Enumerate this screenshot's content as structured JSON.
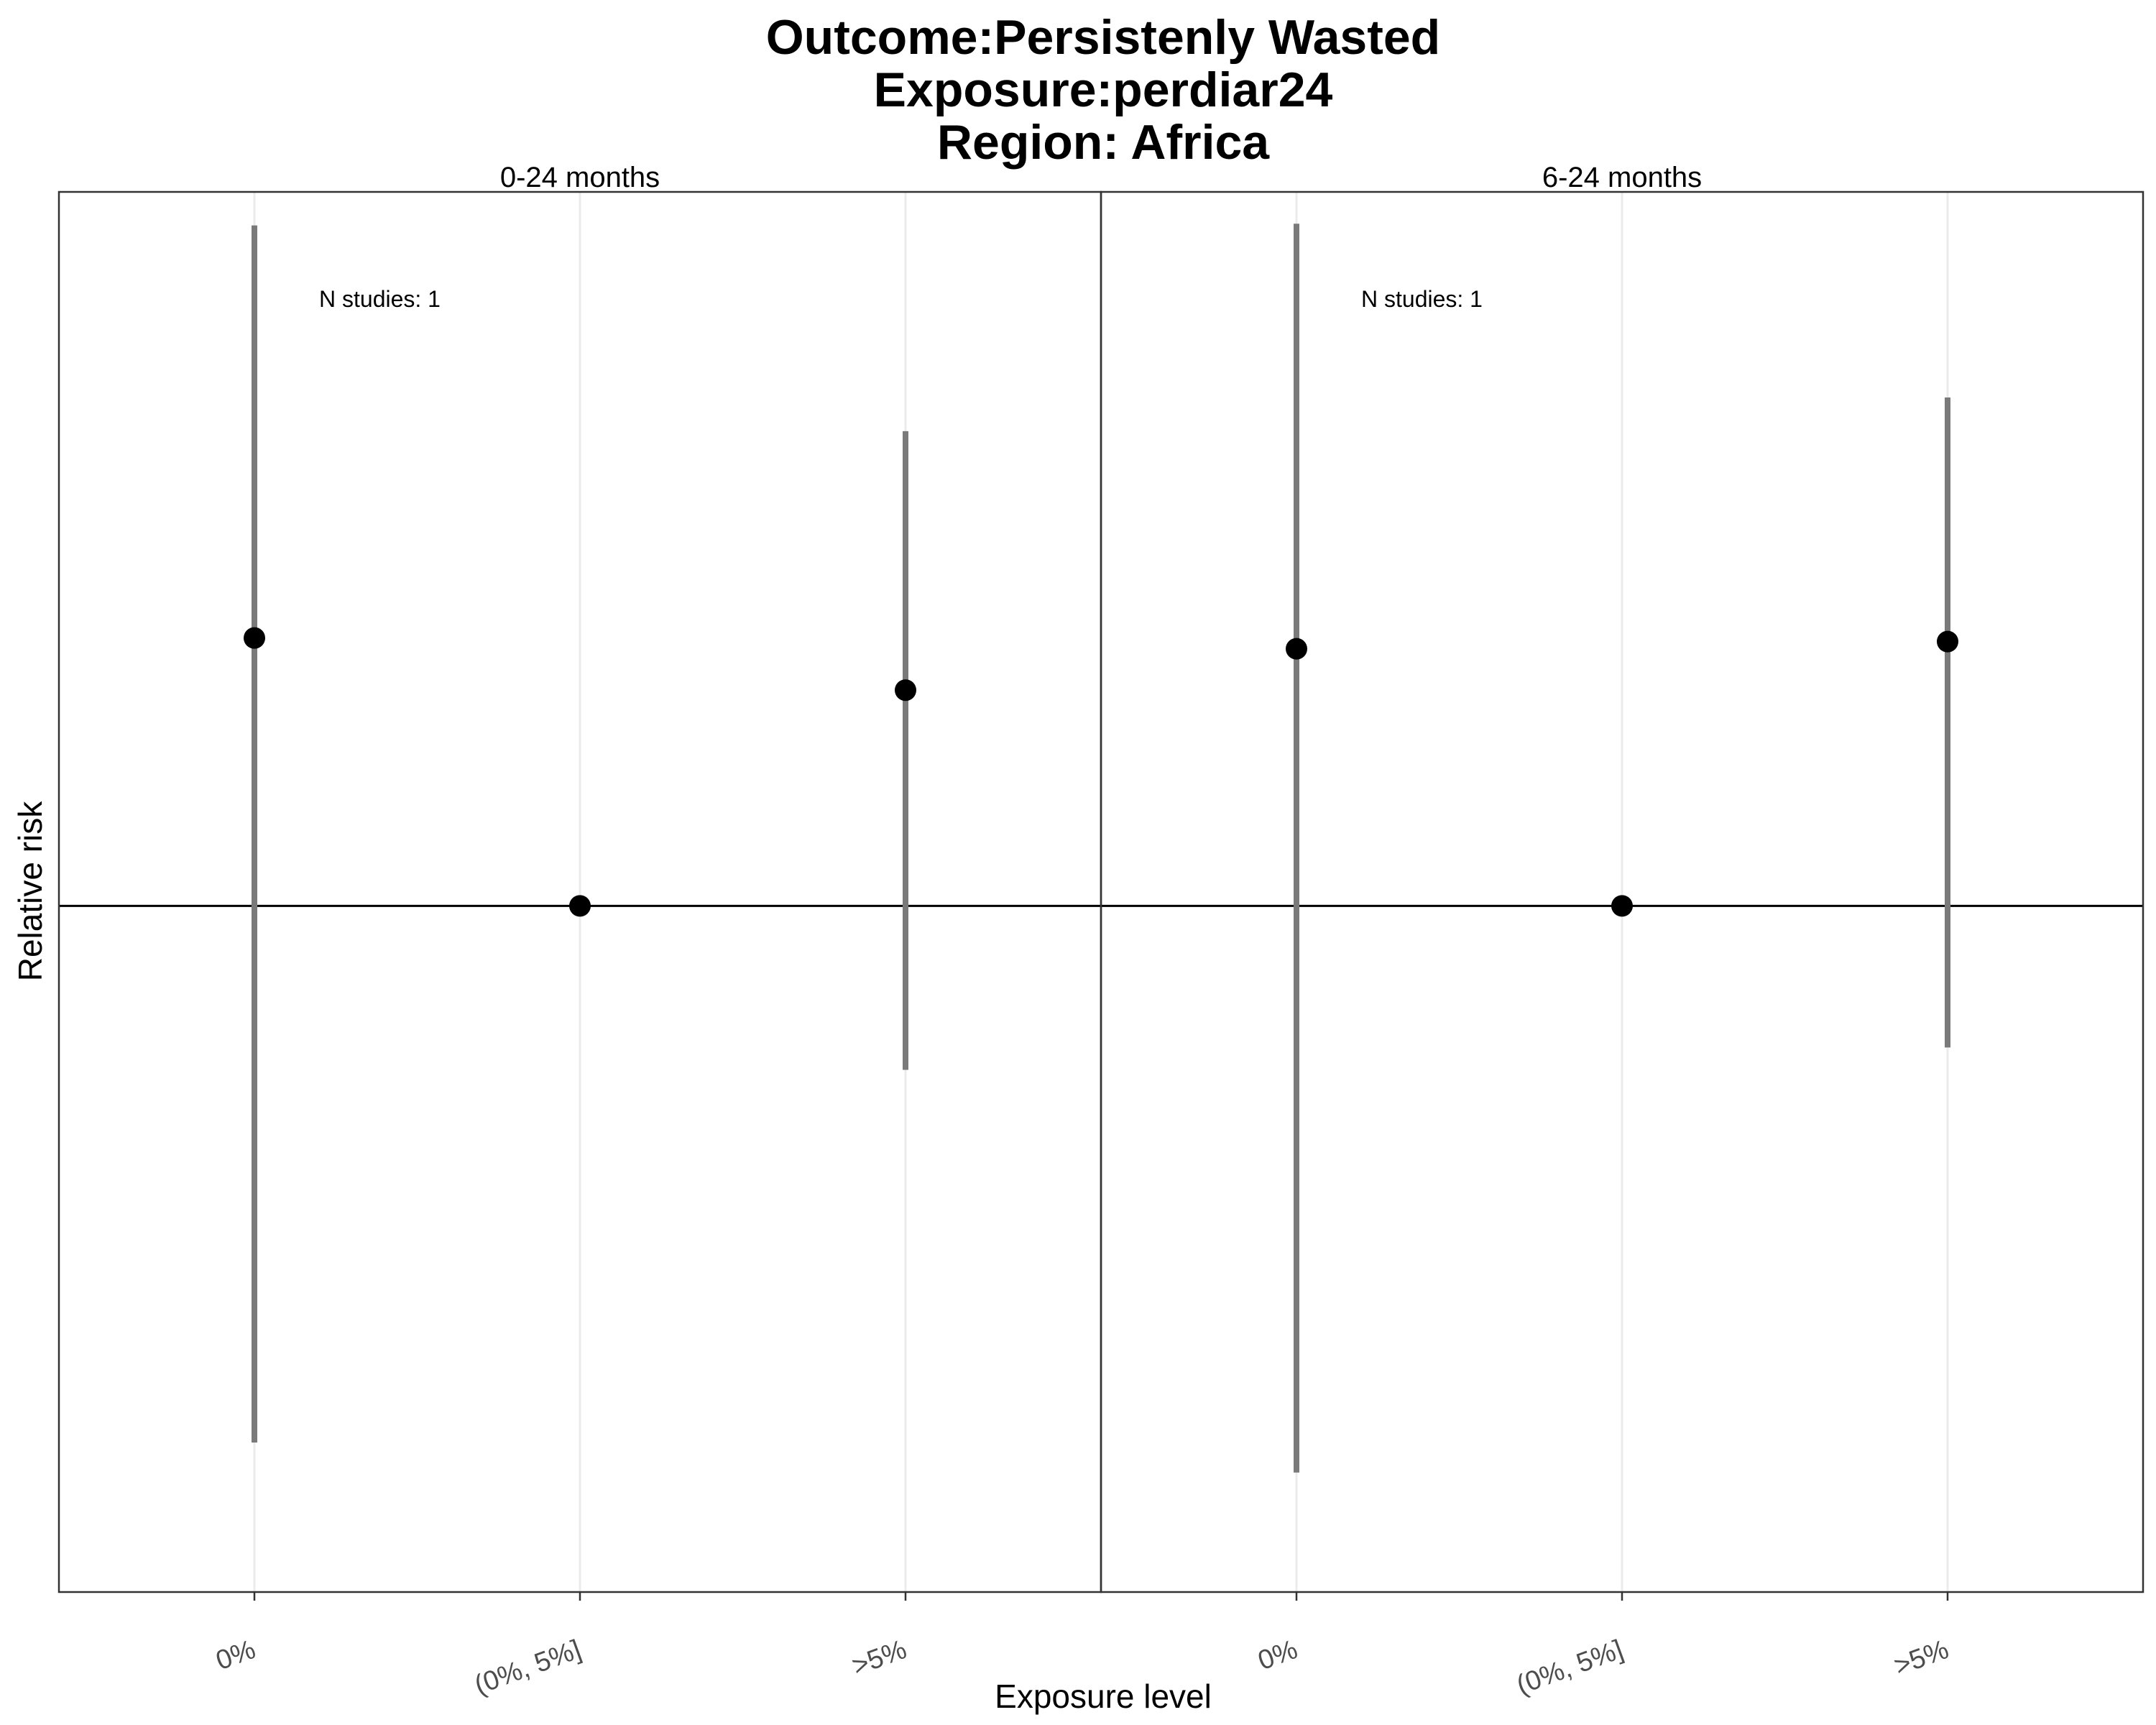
{
  "chart_data": {
    "type": "scatter",
    "title_lines": [
      "Outcome:Persistenly Wasted",
      "Exposure:perdiar24",
      "Region: Africa"
    ],
    "xlabel": "Exposure level",
    "ylabel": "Relative risk",
    "categories": [
      "0%",
      "(0%, 5%]",
      ">5%"
    ],
    "reference_line": 1,
    "ylim": [
      0.3,
      3.5
    ],
    "grid": "vertical major gridlines only",
    "legend": "none",
    "colors": {
      "point": "#000000",
      "errorbar": "#7a7a7a",
      "gridline": "#ebebeb",
      "reference": "#000000"
    },
    "panels": [
      {
        "strip_label": "0-24 months",
        "annotation": "N studies: 1",
        "points": [
          {
            "x": "0%",
            "y": 1.6,
            "ci_lower": 0.39,
            "ci_upper": 3.3
          },
          {
            "x": "(0%, 5%]",
            "y": 1.0
          },
          {
            "x": ">5%",
            "y": 1.46,
            "ci_lower": 0.75,
            "ci_upper": 2.3
          }
        ]
      },
      {
        "strip_label": "6-24 months",
        "annotation": "N studies: 1",
        "points": [
          {
            "x": "0%",
            "y": 1.57,
            "ci_lower": 0.37,
            "ci_upper": 3.31
          },
          {
            "x": "(0%, 5%]",
            "y": 1.0
          },
          {
            "x": ">5%",
            "y": 1.59,
            "ci_lower": 0.78,
            "ci_upper": 2.44
          }
        ]
      }
    ]
  }
}
